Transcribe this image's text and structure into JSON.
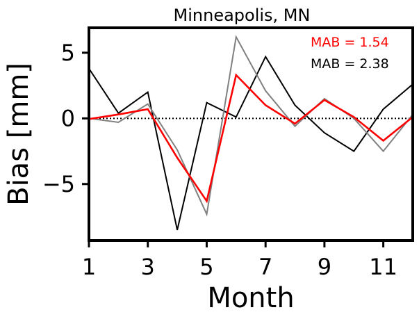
{
  "chart_data": {
    "type": "line",
    "title": "Minneapolis, MN",
    "xlabel": "Month",
    "ylabel": "Bias [mm]",
    "xlim": [
      1,
      12
    ],
    "ylim": [
      -9.3,
      6.9
    ],
    "xticks": [
      1,
      3,
      5,
      7,
      9,
      11
    ],
    "yticks": [
      5,
      0,
      -5
    ],
    "ytick_labels": [
      "5",
      "0",
      "−5"
    ],
    "grid": false,
    "zero_line": {
      "y": 0,
      "style": "dotted",
      "color": "#000000"
    },
    "x": [
      1,
      2,
      3,
      4,
      5,
      6,
      7,
      8,
      9,
      10,
      11,
      12
    ],
    "series": [
      {
        "color": "#000000",
        "values": [
          3.8,
          0.4,
          2.0,
          -8.5,
          1.2,
          0.1,
          4.7,
          1.0,
          -1.1,
          -2.5,
          0.7,
          2.6
        ]
      },
      {
        "color": "#808080",
        "values": [
          0.0,
          -0.3,
          1.1,
          -2.4,
          -7.3,
          6.2,
          2.1,
          -0.6,
          1.5,
          0.0,
          -2.5,
          0.3
        ]
      },
      {
        "color": "#ff0000",
        "values": [
          -0.05,
          0.3,
          0.7,
          -3.0,
          -6.3,
          3.3,
          1.0,
          -0.4,
          1.4,
          0.1,
          -1.7,
          0.1
        ]
      }
    ],
    "annotations": [
      {
        "text": "MAB = 1.54",
        "color": "#ff0000"
      },
      {
        "text": "MAB = 2.38",
        "color": "#000000"
      }
    ]
  }
}
